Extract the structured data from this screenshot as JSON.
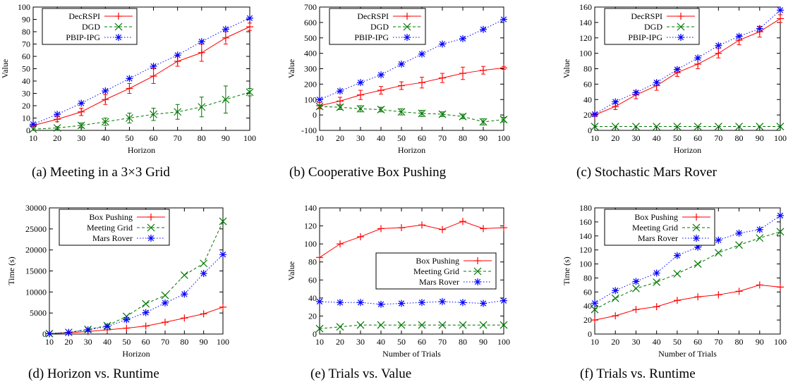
{
  "chart_data": [
    {
      "type": "line",
      "caption": "(a) Meeting in a 3×3 Grid",
      "xlabel": "Horizon",
      "ylabel": "Value",
      "x": [
        10,
        20,
        30,
        40,
        50,
        60,
        70,
        80,
        90,
        100
      ],
      "xticks": [
        "10",
        "20",
        "30",
        "40",
        "50",
        "60",
        "70",
        "80",
        "90",
        "100"
      ],
      "ylim": [
        0,
        100
      ],
      "yticks": [
        0,
        10,
        20,
        30,
        40,
        50,
        60,
        70,
        80,
        90,
        100
      ],
      "legend": "top-left",
      "series": [
        {
          "name": "DecRSPI",
          "color": "#ff0000",
          "marker": "plus",
          "dash": "solid",
          "values": [
            4,
            9,
            15,
            25,
            34,
            44,
            56,
            63,
            75,
            84
          ],
          "errors": [
            1,
            2,
            3,
            4,
            4,
            6,
            4,
            7,
            5,
            3
          ]
        },
        {
          "name": "DGD",
          "color": "#007700",
          "marker": "x",
          "dash": "dashed",
          "values": [
            1,
            2,
            4,
            7,
            10,
            13,
            15,
            19,
            25,
            31
          ],
          "errors": [
            0,
            1,
            2,
            3,
            4,
            5,
            6,
            8,
            11,
            3
          ]
        },
        {
          "name": "PBIP-IPG",
          "color": "#0000ff",
          "marker": "star",
          "dash": "dotted",
          "values": [
            5,
            13,
            22,
            32,
            42,
            52,
            61,
            72,
            82,
            91
          ],
          "errors": null
        }
      ]
    },
    {
      "type": "line",
      "caption": "(b) Cooperative Box Pushing",
      "xlabel": "Horizon",
      "ylabel": "Value",
      "x": [
        10,
        20,
        30,
        40,
        50,
        60,
        70,
        80,
        90,
        100
      ],
      "xticks": [
        "10",
        "20",
        "30",
        "40",
        "50",
        "60",
        "70",
        "80",
        "90",
        "100"
      ],
      "ylim": [
        -100,
        700
      ],
      "yticks": [
        -100,
        0,
        100,
        200,
        300,
        400,
        500,
        600,
        700
      ],
      "legend": "top-left",
      "series": [
        {
          "name": "DecRSPI",
          "color": "#ff0000",
          "marker": "plus",
          "dash": "solid",
          "values": [
            60,
            90,
            130,
            160,
            190,
            210,
            240,
            270,
            290,
            305
          ],
          "errors": [
            20,
            25,
            30,
            25,
            25,
            35,
            30,
            40,
            25,
            10
          ]
        },
        {
          "name": "DGD",
          "color": "#007700",
          "marker": "x",
          "dash": "dashed",
          "values": [
            55,
            50,
            40,
            35,
            20,
            10,
            5,
            -10,
            -45,
            -30
          ],
          "errors": [
            10,
            15,
            20,
            15,
            20,
            20,
            15,
            15,
            20,
            15
          ]
        },
        {
          "name": "PBIP-IPG",
          "color": "#0000ff",
          "marker": "star",
          "dash": "dotted",
          "values": [
            100,
            155,
            210,
            260,
            330,
            395,
            460,
            495,
            555,
            620
          ],
          "errors": null
        }
      ]
    },
    {
      "type": "line",
      "caption": "(c) Stochastic Mars Rover",
      "xlabel": "Horizon",
      "ylabel": "Value",
      "x": [
        10,
        20,
        30,
        40,
        50,
        60,
        70,
        80,
        90,
        100
      ],
      "xticks": [
        "10",
        "20",
        "30",
        "40",
        "50",
        "60",
        "70",
        "80",
        "90",
        "100"
      ],
      "ylim": [
        0,
        160
      ],
      "yticks": [
        0,
        20,
        40,
        60,
        80,
        100,
        120,
        140,
        160
      ],
      "legend": "top-left",
      "series": [
        {
          "name": "DecRSPI",
          "color": "#ff0000",
          "marker": "plus",
          "dash": "solid",
          "values": [
            20,
            31,
            46,
            58,
            75,
            86,
            100,
            117,
            128,
            145
          ],
          "errors": [
            2,
            4,
            5,
            6,
            5,
            6,
            6,
            6,
            7,
            5
          ]
        },
        {
          "name": "DGD",
          "color": "#007700",
          "marker": "x",
          "dash": "dashed",
          "values": [
            5,
            5,
            5,
            5,
            5,
            5,
            5,
            5,
            5,
            5
          ],
          "errors": null
        },
        {
          "name": "PBIP-IPG",
          "color": "#0000ff",
          "marker": "star",
          "dash": "dotted",
          "values": [
            21,
            37,
            49,
            62,
            79,
            94,
            110,
            122,
            132,
            156
          ],
          "errors": null
        }
      ]
    },
    {
      "type": "line",
      "caption": "(d) Horizon vs. Runtime",
      "xlabel": "Horizon",
      "ylabel": "Time (s)",
      "x": [
        10,
        20,
        30,
        40,
        50,
        60,
        70,
        80,
        90,
        100
      ],
      "xticks": [
        "10",
        "20",
        "30",
        "40",
        "50",
        "60",
        "70",
        "80",
        "90",
        "100"
      ],
      "ylim": [
        0,
        30000
      ],
      "yticks": [
        0,
        5000,
        10000,
        15000,
        20000,
        25000,
        30000
      ],
      "legend": "top-left",
      "series": [
        {
          "name": "Box Pushing",
          "color": "#ff0000",
          "marker": "plus",
          "dash": "solid",
          "values": [
            100,
            300,
            600,
            1000,
            1400,
            1900,
            2800,
            3800,
            4800,
            6400
          ],
          "errors": null
        },
        {
          "name": "Meeting Grid",
          "color": "#007700",
          "marker": "x",
          "dash": "dashed",
          "values": [
            100,
            400,
            1100,
            2000,
            4200,
            7200,
            9200,
            14000,
            16800,
            26800
          ],
          "errors": null
        },
        {
          "name": "Mars Rover",
          "color": "#0000ff",
          "marker": "star",
          "dash": "dotted",
          "values": [
            100,
            400,
            1000,
            1800,
            3400,
            5100,
            7400,
            9500,
            14400,
            18900
          ],
          "errors": null
        }
      ]
    },
    {
      "type": "line",
      "caption": "(e) Trials vs. Value",
      "xlabel": "Number of Trials",
      "ylabel": "Value",
      "x": [
        10,
        20,
        30,
        40,
        50,
        60,
        70,
        80,
        90,
        100
      ],
      "xticks": [
        "10",
        "20",
        "30",
        "40",
        "50",
        "60",
        "70",
        "80",
        "90",
        "100"
      ],
      "ylim": [
        0,
        140
      ],
      "yticks": [
        0,
        20,
        40,
        60,
        80,
        100,
        120,
        140
      ],
      "legend": "center-right",
      "series": [
        {
          "name": "Box Pushing",
          "color": "#ff0000",
          "marker": "plus",
          "dash": "solid",
          "values": [
            85,
            100,
            108,
            117,
            118,
            121,
            116,
            125,
            117,
            118
          ],
          "errors": null
        },
        {
          "name": "Meeting Grid",
          "color": "#007700",
          "marker": "x",
          "dash": "dashed",
          "values": [
            6,
            8,
            10,
            10,
            10,
            10,
            10,
            10,
            10,
            10
          ],
          "errors": null
        },
        {
          "name": "Mars Rover",
          "color": "#0000ff",
          "marker": "star",
          "dash": "dotted",
          "values": [
            36,
            35,
            35,
            33,
            34,
            35,
            36,
            35,
            34,
            37
          ],
          "errors": null
        }
      ]
    },
    {
      "type": "line",
      "caption": "(f) Trials vs. Runtime",
      "xlabel": "Number of Trials",
      "ylabel": "Time (s)",
      "x": [
        10,
        20,
        30,
        40,
        50,
        60,
        70,
        80,
        90,
        100
      ],
      "xticks": [
        "10",
        "20",
        "30",
        "40",
        "50",
        "60",
        "70",
        "80",
        "90",
        "100"
      ],
      "ylim": [
        0,
        180
      ],
      "yticks": [
        0,
        20,
        40,
        60,
        80,
        100,
        120,
        140,
        160,
        180
      ],
      "legend": "top-left",
      "series": [
        {
          "name": "Box Pushing",
          "color": "#ff0000",
          "marker": "plus",
          "dash": "solid",
          "values": [
            20,
            26,
            35,
            39,
            48,
            53,
            56,
            61,
            70,
            67
          ],
          "errors": null
        },
        {
          "name": "Meeting Grid",
          "color": "#007700",
          "marker": "x",
          "dash": "dashed",
          "values": [
            35,
            51,
            65,
            74,
            86,
            100,
            116,
            127,
            137,
            146
          ],
          "errors": null
        },
        {
          "name": "Mars Rover",
          "color": "#0000ff",
          "marker": "star",
          "dash": "dotted",
          "values": [
            44,
            62,
            75,
            87,
            112,
            124,
            134,
            144,
            149,
            169
          ],
          "errors": null
        }
      ]
    }
  ]
}
